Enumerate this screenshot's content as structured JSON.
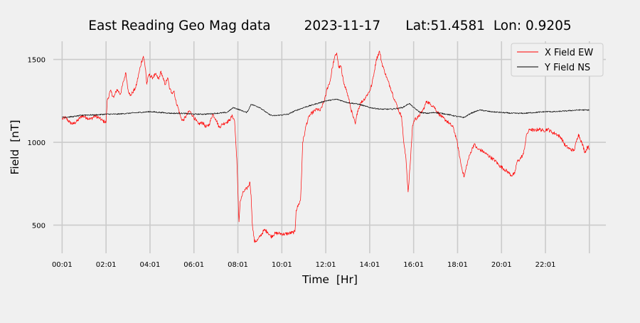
{
  "chart_data": {
    "type": "line",
    "title": "East Reading Geo Mag data        2023-11-17      Lat:51.4581  Lon: 0.9205",
    "xlabel": "Time  [Hr]",
    "ylabel": "Field  [nT]",
    "xlim": [
      -0.4,
      24.75
    ],
    "ylim": [
      330,
      1610
    ],
    "x_ticks": [
      {
        "value": 0.0,
        "label": "00:01"
      },
      {
        "value": 2.0,
        "label": "02:01"
      },
      {
        "value": 4.0,
        "label": "04:01"
      },
      {
        "value": 6.0,
        "label": "06:01"
      },
      {
        "value": 8.0,
        "label": "08:01"
      },
      {
        "value": 10.0,
        "label": "10:01"
      },
      {
        "value": 12.0,
        "label": "12:01"
      },
      {
        "value": 14.0,
        "label": "14:01"
      },
      {
        "value": 16.0,
        "label": "16:01"
      },
      {
        "value": 18.0,
        "label": "18:01"
      },
      {
        "value": 20.0,
        "label": "20:01"
      },
      {
        "value": 22.0,
        "label": "22:01"
      },
      {
        "value": 24.0,
        "label": ""
      }
    ],
    "y_ticks": [
      {
        "value": 500,
        "label": "500"
      },
      {
        "value": 1000,
        "label": "1000"
      },
      {
        "value": 1500,
        "label": "1500"
      }
    ],
    "grid": true,
    "legend_position": "top-right",
    "series": [
      {
        "name": "X Field EW",
        "color": "#ff0000",
        "points": [
          [
            0.0,
            1140
          ],
          [
            0.15,
            1150
          ],
          [
            0.35,
            1120
          ],
          [
            0.5,
            1110
          ],
          [
            0.7,
            1130
          ],
          [
            0.9,
            1160
          ],
          [
            1.1,
            1150
          ],
          [
            1.3,
            1140
          ],
          [
            1.5,
            1160
          ],
          [
            1.7,
            1145
          ],
          [
            1.85,
            1130
          ],
          [
            2.0,
            1120
          ],
          [
            2.05,
            1250
          ],
          [
            2.2,
            1310
          ],
          [
            2.35,
            1270
          ],
          [
            2.5,
            1320
          ],
          [
            2.65,
            1290
          ],
          [
            2.8,
            1370
          ],
          [
            2.9,
            1420
          ],
          [
            3.0,
            1320
          ],
          [
            3.1,
            1280
          ],
          [
            3.2,
            1300
          ],
          [
            3.35,
            1330
          ],
          [
            3.5,
            1420
          ],
          [
            3.6,
            1480
          ],
          [
            3.7,
            1520
          ],
          [
            3.8,
            1440
          ],
          [
            3.85,
            1350
          ],
          [
            3.95,
            1410
          ],
          [
            4.1,
            1390
          ],
          [
            4.25,
            1410
          ],
          [
            4.4,
            1380
          ],
          [
            4.5,
            1430
          ],
          [
            4.6,
            1380
          ],
          [
            4.7,
            1350
          ],
          [
            4.8,
            1390
          ],
          [
            4.9,
            1320
          ],
          [
            5.0,
            1300
          ],
          [
            5.1,
            1310
          ],
          [
            5.15,
            1260
          ],
          [
            5.3,
            1200
          ],
          [
            5.4,
            1150
          ],
          [
            5.5,
            1130
          ],
          [
            5.65,
            1160
          ],
          [
            5.8,
            1190
          ],
          [
            5.95,
            1160
          ],
          [
            6.1,
            1130
          ],
          [
            6.2,
            1110
          ],
          [
            6.4,
            1120
          ],
          [
            6.55,
            1090
          ],
          [
            6.7,
            1110
          ],
          [
            6.85,
            1170
          ],
          [
            7.0,
            1140
          ],
          [
            7.15,
            1090
          ],
          [
            7.3,
            1110
          ],
          [
            7.45,
            1120
          ],
          [
            7.6,
            1130
          ],
          [
            7.75,
            1160
          ],
          [
            7.85,
            1130
          ],
          [
            7.95,
            900
          ],
          [
            8.05,
            520
          ],
          [
            8.1,
            640
          ],
          [
            8.25,
            700
          ],
          [
            8.4,
            720
          ],
          [
            8.5,
            740
          ],
          [
            8.55,
            760
          ],
          [
            8.6,
            680
          ],
          [
            8.65,
            520
          ],
          [
            8.75,
            400
          ],
          [
            8.9,
            410
          ],
          [
            9.05,
            440
          ],
          [
            9.2,
            470
          ],
          [
            9.35,
            460
          ],
          [
            9.5,
            430
          ],
          [
            9.7,
            450
          ],
          [
            9.9,
            450
          ],
          [
            10.1,
            445
          ],
          [
            10.3,
            450
          ],
          [
            10.5,
            455
          ],
          [
            10.6,
            460
          ],
          [
            10.65,
            590
          ],
          [
            10.75,
            620
          ],
          [
            10.85,
            650
          ],
          [
            10.9,
            800
          ],
          [
            10.95,
            1000
          ],
          [
            11.05,
            1060
          ],
          [
            11.1,
            1100
          ],
          [
            11.25,
            1160
          ],
          [
            11.4,
            1180
          ],
          [
            11.6,
            1200
          ],
          [
            11.75,
            1190
          ],
          [
            11.9,
            1240
          ],
          [
            12.0,
            1280
          ],
          [
            12.05,
            1320
          ],
          [
            12.2,
            1370
          ],
          [
            12.3,
            1450
          ],
          [
            12.4,
            1510
          ],
          [
            12.5,
            1540
          ],
          [
            12.6,
            1450
          ],
          [
            12.7,
            1460
          ],
          [
            12.75,
            1400
          ],
          [
            12.85,
            1350
          ],
          [
            12.95,
            1310
          ],
          [
            13.05,
            1260
          ],
          [
            13.15,
            1200
          ],
          [
            13.25,
            1150
          ],
          [
            13.35,
            1110
          ],
          [
            13.45,
            1190
          ],
          [
            13.6,
            1240
          ],
          [
            13.75,
            1260
          ],
          [
            13.9,
            1290
          ],
          [
            14.0,
            1310
          ],
          [
            14.1,
            1350
          ],
          [
            14.2,
            1420
          ],
          [
            14.3,
            1500
          ],
          [
            14.45,
            1550
          ],
          [
            14.55,
            1480
          ],
          [
            14.65,
            1440
          ],
          [
            14.8,
            1380
          ],
          [
            14.95,
            1330
          ],
          [
            15.05,
            1290
          ],
          [
            15.15,
            1250
          ],
          [
            15.25,
            1220
          ],
          [
            15.35,
            1180
          ],
          [
            15.45,
            1160
          ],
          [
            15.55,
            1000
          ],
          [
            15.65,
            900
          ],
          [
            15.75,
            700
          ],
          [
            15.85,
            880
          ],
          [
            15.95,
            1100
          ],
          [
            16.05,
            1140
          ],
          [
            16.2,
            1150
          ],
          [
            16.35,
            1180
          ],
          [
            16.45,
            1200
          ],
          [
            16.6,
            1250
          ],
          [
            16.75,
            1230
          ],
          [
            16.9,
            1220
          ],
          [
            17.1,
            1180
          ],
          [
            17.3,
            1150
          ],
          [
            17.5,
            1130
          ],
          [
            17.65,
            1110
          ],
          [
            17.8,
            1090
          ],
          [
            17.95,
            1020
          ],
          [
            18.05,
            950
          ],
          [
            18.15,
            870
          ],
          [
            18.3,
            790
          ],
          [
            18.45,
            880
          ],
          [
            18.6,
            940
          ],
          [
            18.75,
            990
          ],
          [
            18.9,
            960
          ],
          [
            19.1,
            950
          ],
          [
            19.3,
            930
          ],
          [
            19.5,
            910
          ],
          [
            19.7,
            890
          ],
          [
            19.9,
            860
          ],
          [
            20.1,
            840
          ],
          [
            20.3,
            820
          ],
          [
            20.45,
            800
          ],
          [
            20.6,
            810
          ],
          [
            20.7,
            880
          ],
          [
            20.85,
            900
          ],
          [
            21.0,
            930
          ],
          [
            21.15,
            1050
          ],
          [
            21.3,
            1080
          ],
          [
            21.5,
            1070
          ],
          [
            21.7,
            1080
          ],
          [
            21.9,
            1070
          ],
          [
            22.1,
            1080
          ],
          [
            22.3,
            1060
          ],
          [
            22.5,
            1050
          ],
          [
            22.7,
            1030
          ],
          [
            22.9,
            980
          ],
          [
            23.1,
            960
          ],
          [
            23.3,
            950
          ],
          [
            23.5,
            1050
          ],
          [
            23.65,
            1000
          ],
          [
            23.8,
            940
          ],
          [
            23.95,
            980
          ],
          [
            24.0,
            960
          ]
        ]
      },
      {
        "name": "Y Field NS",
        "color": "#000000",
        "points": [
          [
            0.0,
            1150
          ],
          [
            0.5,
            1155
          ],
          [
            1.0,
            1165
          ],
          [
            1.5,
            1165
          ],
          [
            2.0,
            1170
          ],
          [
            2.5,
            1170
          ],
          [
            3.0,
            1175
          ],
          [
            3.5,
            1180
          ],
          [
            4.0,
            1185
          ],
          [
            4.5,
            1180
          ],
          [
            5.0,
            1175
          ],
          [
            5.5,
            1175
          ],
          [
            6.0,
            1170
          ],
          [
            6.5,
            1170
          ],
          [
            7.0,
            1175
          ],
          [
            7.5,
            1180
          ],
          [
            7.8,
            1210
          ],
          [
            8.0,
            1200
          ],
          [
            8.2,
            1190
          ],
          [
            8.4,
            1180
          ],
          [
            8.5,
            1200
          ],
          [
            8.6,
            1230
          ],
          [
            8.8,
            1220
          ],
          [
            9.0,
            1210
          ],
          [
            9.2,
            1190
          ],
          [
            9.4,
            1170
          ],
          [
            9.6,
            1160
          ],
          [
            10.0,
            1165
          ],
          [
            10.3,
            1170
          ],
          [
            10.6,
            1190
          ],
          [
            11.0,
            1210
          ],
          [
            11.5,
            1230
          ],
          [
            12.0,
            1250
          ],
          [
            12.5,
            1260
          ],
          [
            13.0,
            1240
          ],
          [
            13.5,
            1230
          ],
          [
            14.0,
            1210
          ],
          [
            14.5,
            1200
          ],
          [
            15.0,
            1200
          ],
          [
            15.5,
            1210
          ],
          [
            15.8,
            1235
          ],
          [
            16.0,
            1210
          ],
          [
            16.3,
            1180
          ],
          [
            16.6,
            1175
          ],
          [
            17.0,
            1180
          ],
          [
            17.5,
            1170
          ],
          [
            18.0,
            1155
          ],
          [
            18.3,
            1150
          ],
          [
            18.6,
            1175
          ],
          [
            19.0,
            1195
          ],
          [
            19.5,
            1185
          ],
          [
            20.0,
            1180
          ],
          [
            20.5,
            1175
          ],
          [
            21.0,
            1175
          ],
          [
            21.5,
            1180
          ],
          [
            22.0,
            1185
          ],
          [
            22.5,
            1185
          ],
          [
            23.0,
            1190
          ],
          [
            23.5,
            1195
          ],
          [
            24.0,
            1195
          ]
        ]
      }
    ]
  }
}
